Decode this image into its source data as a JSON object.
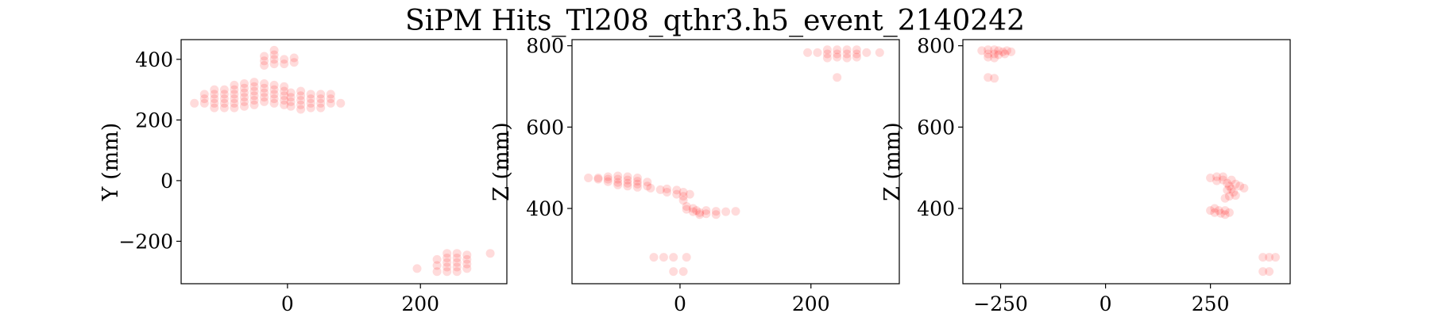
{
  "title": "SiPM Hits_Tl208_qthr3.h5_event_2140242",
  "point_color": "#ff0000",
  "chart_data": [
    {
      "type": "scatter",
      "xlabel": "",
      "ylabel": "Y (mm)",
      "xlim": [
        -160,
        330
      ],
      "ylim": [
        -340,
        465
      ],
      "xticks": [
        0,
        200
      ],
      "yticks": [
        -200,
        0,
        200,
        400
      ],
      "points": [
        [
          -140,
          255
        ],
        [
          -125,
          255
        ],
        [
          -125,
          270
        ],
        [
          -125,
          285
        ],
        [
          -110,
          240
        ],
        [
          -110,
          255
        ],
        [
          -110,
          270
        ],
        [
          -110,
          285
        ],
        [
          -110,
          300
        ],
        [
          -95,
          240
        ],
        [
          -95,
          255
        ],
        [
          -95,
          270
        ],
        [
          -95,
          285
        ],
        [
          -95,
          300
        ],
        [
          -80,
          240
        ],
        [
          -80,
          255
        ],
        [
          -80,
          270
        ],
        [
          -80,
          285
        ],
        [
          -80,
          300
        ],
        [
          -80,
          315
        ],
        [
          -65,
          245
        ],
        [
          -65,
          260
        ],
        [
          -65,
          275
        ],
        [
          -65,
          290
        ],
        [
          -65,
          305
        ],
        [
          -65,
          320
        ],
        [
          -50,
          250
        ],
        [
          -50,
          265
        ],
        [
          -50,
          280
        ],
        [
          -50,
          295
        ],
        [
          -50,
          310
        ],
        [
          -50,
          325
        ],
        [
          -35,
          260
        ],
        [
          -35,
          275
        ],
        [
          -35,
          290
        ],
        [
          -35,
          305
        ],
        [
          -35,
          320
        ],
        [
          -20,
          255
        ],
        [
          -20,
          270
        ],
        [
          -20,
          285
        ],
        [
          -20,
          300
        ],
        [
          -20,
          315
        ],
        [
          -5,
          250
        ],
        [
          -5,
          265
        ],
        [
          -5,
          280
        ],
        [
          -5,
          295
        ],
        [
          -5,
          310
        ],
        [
          5,
          245
        ],
        [
          5,
          260
        ],
        [
          5,
          275
        ],
        [
          5,
          290
        ],
        [
          20,
          235
        ],
        [
          20,
          250
        ],
        [
          20,
          265
        ],
        [
          20,
          280
        ],
        [
          20,
          295
        ],
        [
          35,
          240
        ],
        [
          35,
          255
        ],
        [
          35,
          270
        ],
        [
          35,
          285
        ],
        [
          50,
          240
        ],
        [
          50,
          255
        ],
        [
          50,
          270
        ],
        [
          50,
          285
        ],
        [
          65,
          255
        ],
        [
          65,
          270
        ],
        [
          65,
          285
        ],
        [
          80,
          255
        ],
        [
          -35,
          380
        ],
        [
          -35,
          395
        ],
        [
          -35,
          410
        ],
        [
          -20,
          385
        ],
        [
          -20,
          400
        ],
        [
          -20,
          415
        ],
        [
          -20,
          430
        ],
        [
          -5,
          385
        ],
        [
          -5,
          400
        ],
        [
          10,
          390
        ],
        [
          10,
          405
        ],
        [
          195,
          -290
        ],
        [
          225,
          -260
        ],
        [
          225,
          -280
        ],
        [
          225,
          -300
        ],
        [
          240,
          -240
        ],
        [
          240,
          -255
        ],
        [
          240,
          -270
        ],
        [
          240,
          -285
        ],
        [
          240,
          -300
        ],
        [
          255,
          -240
        ],
        [
          255,
          -255
        ],
        [
          255,
          -270
        ],
        [
          255,
          -285
        ],
        [
          255,
          -300
        ],
        [
          270,
          -245
        ],
        [
          270,
          -260
        ],
        [
          270,
          -275
        ],
        [
          270,
          -290
        ],
        [
          305,
          -240
        ]
      ]
    },
    {
      "type": "scatter",
      "xlabel": "",
      "ylabel": "Z (mm)",
      "xlim": [
        -165,
        335
      ],
      "ylim": [
        215,
        815
      ],
      "xticks": [
        0,
        200
      ],
      "yticks": [
        400,
        600,
        800
      ],
      "points": [
        [
          -140,
          475
        ],
        [
          -125,
          475
        ],
        [
          -125,
          472
        ],
        [
          -110,
          478
        ],
        [
          -110,
          472
        ],
        [
          -110,
          466
        ],
        [
          -95,
          480
        ],
        [
          -95,
          472
        ],
        [
          -95,
          464
        ],
        [
          -95,
          458
        ],
        [
          -80,
          478
        ],
        [
          -80,
          470
        ],
        [
          -80,
          462
        ],
        [
          -80,
          455
        ],
        [
          -65,
          475
        ],
        [
          -65,
          467
        ],
        [
          -65,
          460
        ],
        [
          -65,
          452
        ],
        [
          -50,
          465
        ],
        [
          -50,
          455
        ],
        [
          -45,
          450
        ],
        [
          -30,
          446
        ],
        [
          -20,
          448
        ],
        [
          -20,
          440
        ],
        [
          -5,
          445
        ],
        [
          -5,
          435
        ],
        [
          5,
          440
        ],
        [
          5,
          430
        ],
        [
          5,
          420
        ],
        [
          10,
          405
        ],
        [
          10,
          398
        ],
        [
          15,
          435
        ],
        [
          20,
          400
        ],
        [
          20,
          392
        ],
        [
          25,
          395
        ],
        [
          30,
          390
        ],
        [
          30,
          385
        ],
        [
          40,
          395
        ],
        [
          40,
          387
        ],
        [
          55,
          393
        ],
        [
          55,
          385
        ],
        [
          70,
          392
        ],
        [
          85,
          393
        ],
        [
          -40,
          280
        ],
        [
          -25,
          280
        ],
        [
          -10,
          280
        ],
        [
          10,
          280
        ],
        [
          -10,
          245
        ],
        [
          5,
          245
        ],
        [
          195,
          783
        ],
        [
          210,
          783
        ],
        [
          225,
          790
        ],
        [
          225,
          780
        ],
        [
          225,
          770
        ],
        [
          240,
          790
        ],
        [
          240,
          780
        ],
        [
          240,
          772
        ],
        [
          255,
          790
        ],
        [
          255,
          780
        ],
        [
          255,
          770
        ],
        [
          270,
          790
        ],
        [
          270,
          780
        ],
        [
          270,
          772
        ],
        [
          285,
          783
        ],
        [
          305,
          783
        ],
        [
          240,
          722
        ]
      ]
    },
    {
      "type": "scatter",
      "xlabel": "",
      "ylabel": "Z (mm)",
      "xlim": [
        -340,
        440
      ],
      "ylim": [
        215,
        815
      ],
      "xticks": [
        -250,
        0,
        250
      ],
      "yticks": [
        400,
        600,
        800
      ],
      "points": [
        [
          -295,
          788
        ],
        [
          -280,
          790
        ],
        [
          -280,
          780
        ],
        [
          -280,
          772
        ],
        [
          -265,
          790
        ],
        [
          -265,
          780
        ],
        [
          -265,
          770
        ],
        [
          -255,
          788
        ],
        [
          -255,
          778
        ],
        [
          -245,
          785
        ],
        [
          -240,
          780
        ],
        [
          -235,
          788
        ],
        [
          -225,
          785
        ],
        [
          -280,
          722
        ],
        [
          -265,
          720
        ],
        [
          250,
          475
        ],
        [
          265,
          478
        ],
        [
          265,
          468
        ],
        [
          280,
          478
        ],
        [
          280,
          470
        ],
        [
          290,
          462
        ],
        [
          295,
          455
        ],
        [
          300,
          448
        ],
        [
          305,
          440
        ],
        [
          310,
          432
        ],
        [
          290,
          445
        ],
        [
          300,
          470
        ],
        [
          310,
          460
        ],
        [
          320,
          455
        ],
        [
          330,
          450
        ],
        [
          285,
          425
        ],
        [
          295,
          430
        ],
        [
          250,
          395
        ],
        [
          260,
          400
        ],
        [
          260,
          390
        ],
        [
          270,
          395
        ],
        [
          275,
          388
        ],
        [
          285,
          395
        ],
        [
          285,
          385
        ],
        [
          295,
          390
        ],
        [
          375,
          280
        ],
        [
          390,
          280
        ],
        [
          405,
          280
        ],
        [
          375,
          245
        ],
        [
          390,
          245
        ]
      ]
    }
  ]
}
